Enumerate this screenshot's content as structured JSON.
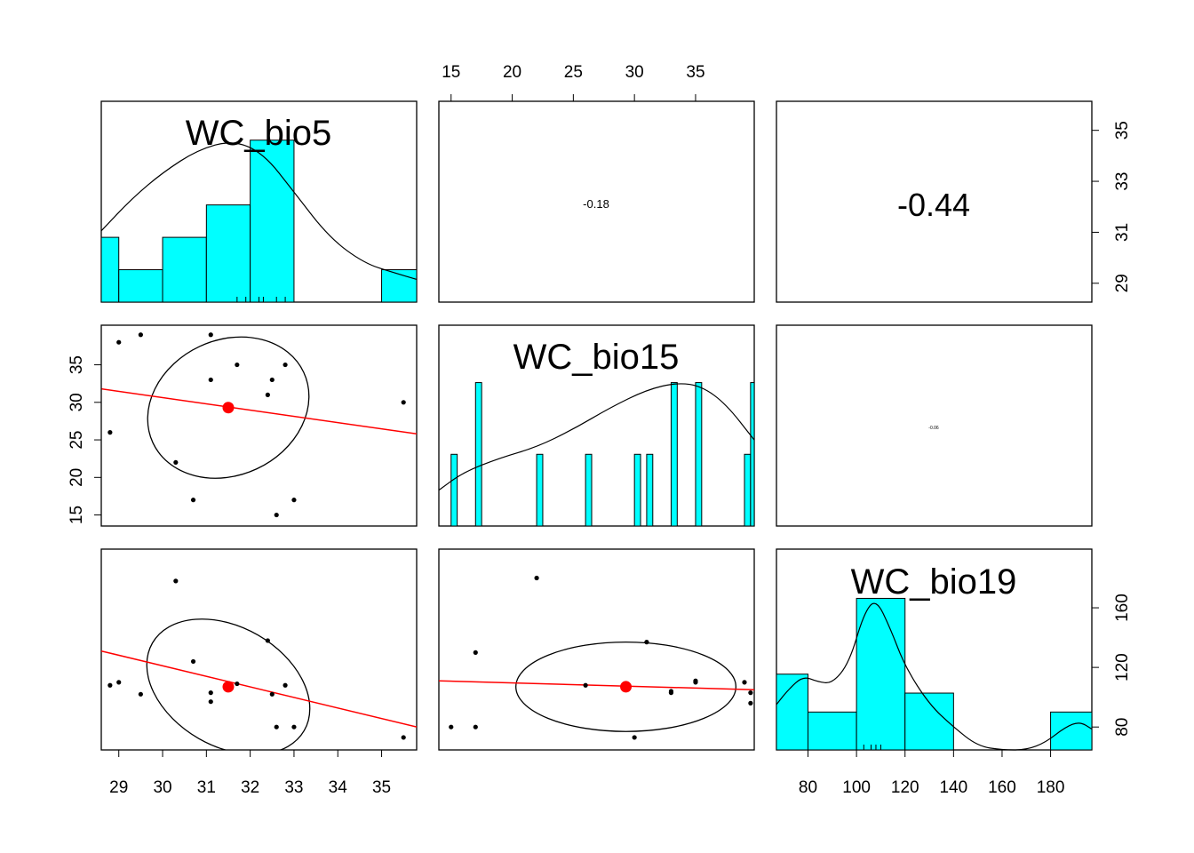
{
  "colors": {
    "hist_fill": "#00FFFF",
    "fit_line": "#FF0000",
    "mean_point": "#FF0000",
    "points": "#000000",
    "frame": "#000000"
  },
  "chart_data": {
    "type": "pairs-panel",
    "variables": [
      "WC_bio5",
      "WC_bio15",
      "WC_bio19"
    ],
    "correlations": [
      {
        "row": 0,
        "col": 1,
        "label": "-0.18"
      },
      {
        "row": 0,
        "col": 2,
        "label": "-0.44"
      },
      {
        "row": 1,
        "col": 2,
        "label": "-0.06"
      }
    ],
    "axes": {
      "WC_bio5": {
        "range": [
          28.6,
          35.8
        ],
        "ticks": [
          29,
          30,
          31,
          32,
          33,
          34,
          35
        ],
        "tick_labels": [
          "29",
          "30",
          "31",
          "32",
          "33",
          "34",
          "35"
        ]
      },
      "WC_bio15": {
        "range": [
          14.0,
          39.8
        ],
        "ticks": [
          15,
          20,
          25,
          30,
          35
        ],
        "tick_labels": [
          "15",
          "20",
          "25",
          "30",
          "35"
        ]
      },
      "WC_bio19": {
        "range": [
          67,
          197
        ],
        "ticks": [
          80,
          100,
          120,
          140,
          160,
          180
        ],
        "tick_labels": [
          "80",
          "100",
          "120",
          "140",
          "160",
          "180"
        ]
      }
    },
    "vertical_axes": {
      "row0_right": {
        "range": [
          28.4,
          36.0
        ],
        "ticks": [
          29,
          31,
          33,
          35
        ],
        "tick_labels": [
          "29",
          "31",
          "33",
          "35"
        ]
      },
      "row1_left": {
        "ticks": [
          15,
          20,
          25,
          30,
          35
        ],
        "tick_labels": [
          "15",
          "20",
          "25",
          "30",
          "35"
        ]
      },
      "row2_right": {
        "range": [
          67,
          197
        ],
        "ticks": [
          80,
          120,
          160
        ],
        "tick_labels": [
          "80",
          "120",
          "160"
        ]
      }
    },
    "histograms": {
      "WC_bio5": {
        "bins": [
          [
            28.6,
            29.0,
            2
          ],
          [
            29.0,
            30.0,
            1
          ],
          [
            30.0,
            31.0,
            2
          ],
          [
            31.0,
            32.0,
            3
          ],
          [
            32.0,
            33.0,
            5
          ],
          [
            35.0,
            35.8,
            1
          ]
        ],
        "count_max": 6.2,
        "density": [
          [
            28.6,
            2.2
          ],
          [
            29.3,
            3.2
          ],
          [
            30.0,
            4.0
          ],
          [
            30.8,
            4.7
          ],
          [
            31.6,
            5.0
          ],
          [
            32.3,
            4.6
          ],
          [
            33.0,
            3.4
          ],
          [
            33.8,
            2.0
          ],
          [
            34.6,
            1.2
          ],
          [
            35.3,
            0.9
          ],
          [
            35.8,
            0.7
          ]
        ]
      },
      "WC_bio15": {
        "bins": [
          [
            15,
            15.5,
            1
          ],
          [
            17,
            17.5,
            2
          ],
          [
            22,
            22.5,
            1
          ],
          [
            26,
            26.5,
            1
          ],
          [
            30,
            30.5,
            1
          ],
          [
            31,
            31.5,
            1
          ],
          [
            33,
            33.5,
            2
          ],
          [
            35,
            35.5,
            2
          ],
          [
            39,
            39.5,
            1
          ],
          [
            39.5,
            40,
            2
          ]
        ],
        "count_max": 2.8,
        "density": [
          [
            14.0,
            0.5
          ],
          [
            16.0,
            0.75
          ],
          [
            19.0,
            0.95
          ],
          [
            22.0,
            1.1
          ],
          [
            25.0,
            1.35
          ],
          [
            28.0,
            1.65
          ],
          [
            31.0,
            1.9
          ],
          [
            33.5,
            2.0
          ],
          [
            35.5,
            1.95
          ],
          [
            37.5,
            1.7
          ],
          [
            39.8,
            1.2
          ]
        ]
      },
      "WC_bio19": {
        "bins": [
          [
            67,
            80,
            2
          ],
          [
            80,
            100,
            1
          ],
          [
            100,
            120,
            4
          ],
          [
            120,
            140,
            1.5
          ],
          [
            180,
            197,
            1
          ]
        ],
        "count_max": 5.3,
        "density": [
          [
            67,
            1.2
          ],
          [
            72,
            1.6
          ],
          [
            78,
            1.95
          ],
          [
            84,
            1.8
          ],
          [
            90,
            1.75
          ],
          [
            97,
            2.3
          ],
          [
            103,
            3.6
          ],
          [
            108,
            4.0
          ],
          [
            114,
            3.2
          ],
          [
            120,
            2.2
          ],
          [
            130,
            1.2
          ],
          [
            140,
            0.6
          ],
          [
            150,
            0.1
          ],
          [
            160,
            0.0
          ],
          [
            170,
            0.0
          ],
          [
            178,
            0.2
          ],
          [
            186,
            0.6
          ],
          [
            192,
            0.75
          ],
          [
            197,
            0.55
          ]
        ]
      }
    },
    "rug": {
      "WC_bio5": [
        31.7,
        31.9,
        32.2,
        32.3,
        32.6,
        32.8
      ],
      "WC_bio19": [
        103,
        106,
        108,
        110
      ]
    },
    "scatter": {
      "bio5_vs_bio15": {
        "points": [
          [
            28.8,
            26
          ],
          [
            29.0,
            38
          ],
          [
            29.5,
            39
          ],
          [
            30.3,
            22
          ],
          [
            30.7,
            17
          ],
          [
            31.1,
            39
          ],
          [
            31.1,
            33
          ],
          [
            31.7,
            35
          ],
          [
            32.4,
            31
          ],
          [
            32.5,
            33
          ],
          [
            32.6,
            15
          ],
          [
            32.8,
            35
          ],
          [
            33.0,
            17
          ],
          [
            35.5,
            30
          ]
        ],
        "mean": [
          31.5,
          29.3
        ],
        "fit": [
          [
            28.6,
            31.8
          ],
          [
            35.8,
            25.8
          ]
        ],
        "ellipse": {
          "cx": 31.5,
          "cy": 29.3,
          "rx": 1.9,
          "ry": 9.0,
          "angle_deg": -25
        }
      },
      "bio5_vs_bio19": {
        "points": [
          [
            28.8,
            108
          ],
          [
            29.0,
            110
          ],
          [
            29.5,
            102
          ],
          [
            30.3,
            178
          ],
          [
            30.7,
            124
          ],
          [
            31.1,
            103
          ],
          [
            31.1,
            97
          ],
          [
            31.7,
            109
          ],
          [
            32.4,
            138
          ],
          [
            32.5,
            102
          ],
          [
            32.6,
            80
          ],
          [
            32.8,
            108
          ],
          [
            33.0,
            80
          ],
          [
            35.5,
            73
          ]
        ],
        "mean": [
          31.5,
          107
        ],
        "fit": [
          [
            28.6,
            131
          ],
          [
            35.8,
            80
          ]
        ],
        "ellipse": {
          "cx": 31.5,
          "cy": 107,
          "rx": 2.0,
          "ry": 40,
          "angle_deg": 30
        }
      },
      "bio15_vs_bio19": {
        "points": [
          [
            15,
            80
          ],
          [
            17,
            80
          ],
          [
            17,
            130
          ],
          [
            22,
            180
          ],
          [
            26,
            108
          ],
          [
            30,
            73
          ],
          [
            31,
            137
          ],
          [
            33,
            103
          ],
          [
            33,
            104
          ],
          [
            35,
            110
          ],
          [
            35,
            111
          ],
          [
            39,
            110
          ],
          [
            39.5,
            96
          ],
          [
            39.5,
            103
          ]
        ],
        "mean": [
          29.3,
          107
        ],
        "fit": [
          [
            14.0,
            111
          ],
          [
            39.8,
            105
          ]
        ],
        "ellipse": {
          "cx": 29.3,
          "cy": 107,
          "rx": 9.0,
          "ry": 30,
          "angle_deg": 0
        }
      }
    }
  }
}
